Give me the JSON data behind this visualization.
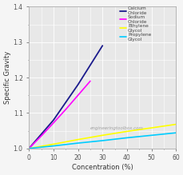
{
  "title": "",
  "xlabel": "Concentration (%)",
  "ylabel": "Specific Gravity",
  "xlim": [
    0,
    60
  ],
  "ylim": [
    1.0,
    1.4
  ],
  "xticks": [
    0,
    10,
    20,
    30,
    40,
    50,
    60
  ],
  "yticks": [
    1.0,
    1.1,
    1.2,
    1.3,
    1.4
  ],
  "watermark": "engineeringtoolbox.com",
  "series": [
    {
      "label": "Calcium\nChloride",
      "color": "#1a1a8c",
      "x": [
        0,
        5,
        10,
        15,
        20,
        25,
        30
      ],
      "y": [
        1.0,
        1.04,
        1.08,
        1.13,
        1.18,
        1.235,
        1.29
      ]
    },
    {
      "label": "Sodium\nChloride",
      "color": "#ff00ff",
      "x": [
        0,
        5,
        10,
        15,
        20,
        25
      ],
      "y": [
        1.0,
        1.035,
        1.072,
        1.11,
        1.15,
        1.19
      ]
    },
    {
      "label": "Ethylene\nGlycol",
      "color": "#ffff00",
      "x": [
        0,
        10,
        20,
        30,
        40,
        50,
        60,
        65
      ],
      "y": [
        1.0,
        1.012,
        1.025,
        1.037,
        1.048,
        1.058,
        1.068,
        1.073
      ]
    },
    {
      "label": "Propylene\nGlycol",
      "color": "#00ccff",
      "x": [
        0,
        10,
        20,
        30,
        40,
        50,
        60,
        65
      ],
      "y": [
        1.0,
        1.007,
        1.015,
        1.022,
        1.03,
        1.037,
        1.044,
        1.047
      ]
    }
  ],
  "plot_bg_color": "#e8e8e8",
  "fig_bg_color": "#f5f5f5",
  "grid_color": "#ffffff",
  "spine_color": "#aaaaaa",
  "tick_color": "#555555",
  "label_color": "#333333",
  "legend_color": "#444444",
  "watermark_color": "#999999",
  "fig_width": 2.3,
  "fig_height": 2.19,
  "dpi": 100
}
